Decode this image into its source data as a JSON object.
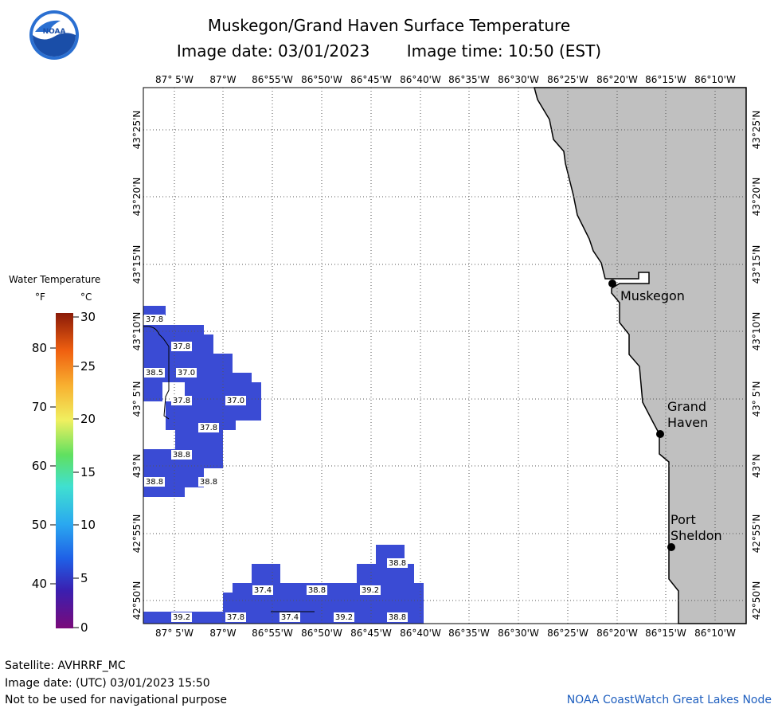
{
  "title": "Muskegon/Grand Haven Surface Temperature",
  "image_date": "Image date: 03/01/2023",
  "image_time": "Image time: 10:50 (EST)",
  "logo_text": "NOAA",
  "legend": {
    "title": "Water Temperature",
    "unit_f": "°F",
    "unit_c": "°C",
    "f_ticks": [
      "80",
      "70",
      "60",
      "50",
      "40"
    ],
    "c_ticks": [
      "30",
      "25",
      "20",
      "15",
      "10",
      "5",
      "0"
    ]
  },
  "lon_labels": [
    "87° 5'W",
    "87°W",
    "86°55'W",
    "86°50'W",
    "86°45'W",
    "86°40'W",
    "86°35'W",
    "86°30'W",
    "86°25'W",
    "86°20'W",
    "86°15'W",
    "86°10'W"
  ],
  "lat_labels": [
    "43°25'N",
    "43°20'N",
    "43°15'N",
    "43°10'N",
    "43° 5'N",
    "43°N",
    "42°55'N",
    "42°50'N"
  ],
  "places": {
    "muskegon": "Muskegon",
    "grand_haven_1": "Grand",
    "grand_haven_2": "Haven",
    "port_sheldon_1": "Port",
    "port_sheldon_2": "Sheldon"
  },
  "temp_labels": [
    "37.8",
    "37.8",
    "38.5",
    "37.0",
    "37.8",
    "37.0",
    "37.8",
    "38.8",
    "38.8",
    "38.8",
    "38.8",
    "37.4",
    "38.8",
    "39.2",
    "39.2",
    "37.8",
    "37.4",
    "39.2",
    "38.8"
  ],
  "footer": {
    "satellite": "Satellite: AVHRRF_MC",
    "utc_date": "Image date: (UTC) 03/01/2023  15:50",
    "disclaimer": "Not to be used for navigational purpose",
    "credit": "NOAA CoastWatch Great Lakes Node"
  },
  "colors": {
    "water_temp_fill": "#3a4bd4",
    "land": "#c0c0c0",
    "link": "#1f5fbf"
  }
}
